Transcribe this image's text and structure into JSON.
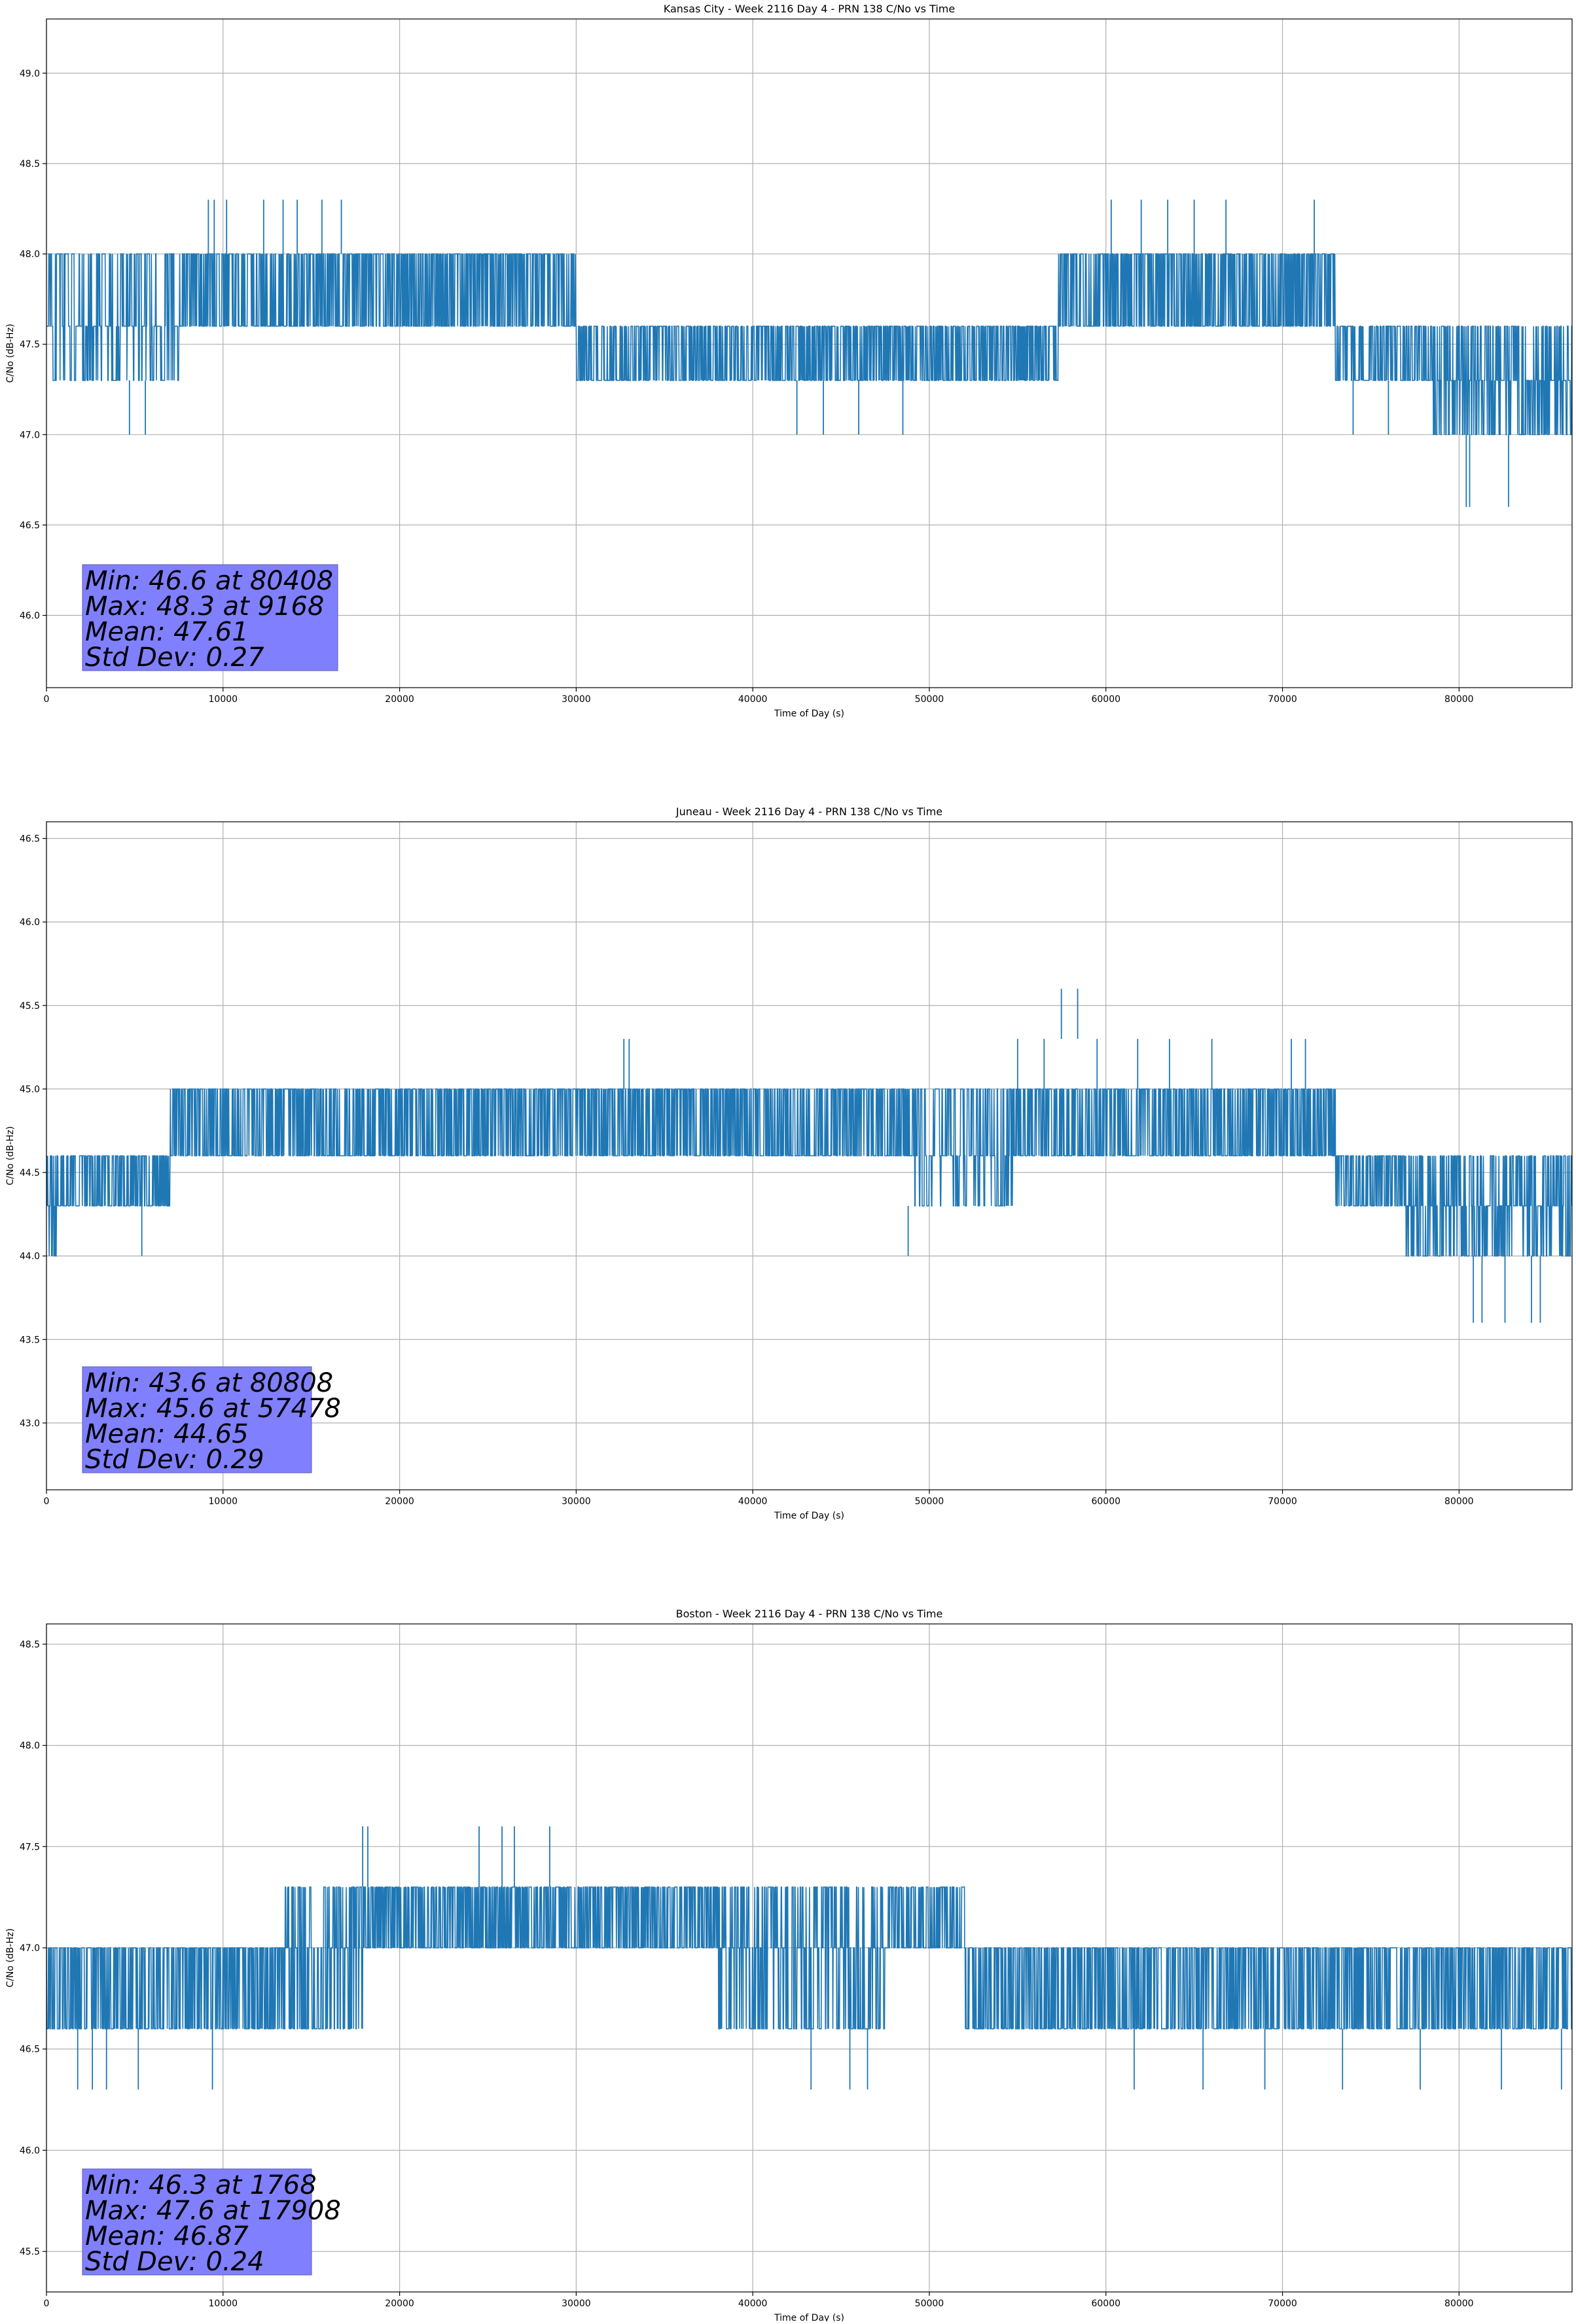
{
  "chart_data": [
    {
      "type": "line",
      "title": "Kansas City - Week 2116 Day 4 - PRN 138 C/No vs Time",
      "xlabel": "Time of Day (s)",
      "ylabel": "C/No (dB-Hz)",
      "xlim": [
        0,
        86400
      ],
      "ylim": [
        45.6,
        49.3
      ],
      "xticks": [
        0,
        10000,
        20000,
        30000,
        40000,
        50000,
        60000,
        70000,
        80000
      ],
      "yticks": [
        46.0,
        46.5,
        47.0,
        47.5,
        48.0,
        48.5,
        49.0
      ],
      "grid": true,
      "series_color": "#1f77b4",
      "segments": [
        {
          "x": [
            0,
            7800
          ],
          "levels": [
            47.3,
            47.6,
            48.0
          ],
          "density": 0.55
        },
        {
          "x": [
            7800,
            30000
          ],
          "levels": [
            47.6,
            48.0
          ],
          "density": 0.9
        },
        {
          "x": [
            30000,
            57300
          ],
          "levels": [
            47.3,
            47.6
          ],
          "density": 0.85
        },
        {
          "x": [
            57300,
            73000
          ],
          "levels": [
            47.6,
            48.0
          ],
          "density": 0.95
        },
        {
          "x": [
            73000,
            78500
          ],
          "levels": [
            47.3,
            47.6
          ],
          "density": 0.75
        },
        {
          "x": [
            78500,
            86400
          ],
          "levels": [
            47.0,
            47.3,
            47.6
          ],
          "density": 0.8
        }
      ],
      "spikes": [
        {
          "x": 4700,
          "low": 47.0,
          "high": 47.3
        },
        {
          "x": 5600,
          "low": 47.0,
          "high": 47.3
        },
        {
          "x": 9168,
          "low": 48.0,
          "high": 48.3
        },
        {
          "x": 9500,
          "low": 48.0,
          "high": 48.3
        },
        {
          "x": 10200,
          "low": 48.0,
          "high": 48.3
        },
        {
          "x": 12300,
          "low": 48.0,
          "high": 48.3
        },
        {
          "x": 13400,
          "low": 48.0,
          "high": 48.3
        },
        {
          "x": 14200,
          "low": 48.0,
          "high": 48.3
        },
        {
          "x": 15600,
          "low": 48.0,
          "high": 48.3
        },
        {
          "x": 16700,
          "low": 48.0,
          "high": 48.3
        },
        {
          "x": 42500,
          "low": 47.0,
          "high": 47.3
        },
        {
          "x": 44000,
          "low": 47.0,
          "high": 47.3
        },
        {
          "x": 46000,
          "low": 47.0,
          "high": 47.3
        },
        {
          "x": 48500,
          "low": 47.0,
          "high": 47.3
        },
        {
          "x": 60300,
          "low": 48.0,
          "high": 48.3
        },
        {
          "x": 62000,
          "low": 48.0,
          "high": 48.3
        },
        {
          "x": 63500,
          "low": 48.0,
          "high": 48.3
        },
        {
          "x": 65000,
          "low": 48.0,
          "high": 48.3
        },
        {
          "x": 66800,
          "low": 48.0,
          "high": 48.3
        },
        {
          "x": 71800,
          "low": 48.0,
          "high": 48.3
        },
        {
          "x": 74000,
          "low": 47.0,
          "high": 47.3
        },
        {
          "x": 76000,
          "low": 47.0,
          "high": 47.3
        },
        {
          "x": 80408,
          "low": 46.6,
          "high": 47.0
        },
        {
          "x": 80600,
          "low": 46.6,
          "high": 47.0
        },
        {
          "x": 82800,
          "low": 46.6,
          "high": 47.0
        }
      ],
      "stats": {
        "min": "Min: 46.6 at 80408",
        "max": "Max: 48.3 at 9168",
        "mean": "Mean: 47.61",
        "std": "Std Dev: 0.27"
      }
    },
    {
      "type": "line",
      "title": "Juneau - Week 2116 Day 4 - PRN 138 C/No vs Time",
      "xlabel": "Time of Day (s)",
      "ylabel": "C/No (dB-Hz)",
      "xlim": [
        0,
        86400
      ],
      "ylim": [
        42.6,
        46.6
      ],
      "xticks": [
        0,
        10000,
        20000,
        30000,
        40000,
        50000,
        60000,
        70000,
        80000
      ],
      "yticks": [
        43.0,
        43.5,
        44.0,
        44.5,
        45.0,
        45.5,
        46.0,
        46.5
      ],
      "grid": true,
      "series_color": "#1f77b4",
      "segments": [
        {
          "x": [
            0,
            600
          ],
          "levels": [
            44.0,
            44.3,
            44.6
          ],
          "density": 0.7
        },
        {
          "x": [
            600,
            7000
          ],
          "levels": [
            44.3,
            44.6
          ],
          "density": 0.8
        },
        {
          "x": [
            7000,
            49000
          ],
          "levels": [
            44.6,
            45.0
          ],
          "density": 0.9
        },
        {
          "x": [
            49000,
            54800
          ],
          "levels": [
            44.3,
            44.6,
            45.0
          ],
          "density": 0.6
        },
        {
          "x": [
            54800,
            73000
          ],
          "levels": [
            44.6,
            45.0
          ],
          "density": 0.9
        },
        {
          "x": [
            73000,
            77000
          ],
          "levels": [
            44.3,
            44.6
          ],
          "density": 0.8
        },
        {
          "x": [
            77000,
            86400
          ],
          "levels": [
            44.0,
            44.3,
            44.6
          ],
          "density": 0.85
        }
      ],
      "spikes": [
        {
          "x": 5400,
          "low": 44.0,
          "high": 44.3
        },
        {
          "x": 32700,
          "low": 45.0,
          "high": 45.3
        },
        {
          "x": 33000,
          "low": 45.0,
          "high": 45.3
        },
        {
          "x": 48800,
          "low": 44.0,
          "high": 44.3
        },
        {
          "x": 55000,
          "low": 45.0,
          "high": 45.3
        },
        {
          "x": 56500,
          "low": 45.0,
          "high": 45.3
        },
        {
          "x": 57478,
          "low": 45.3,
          "high": 45.6
        },
        {
          "x": 58400,
          "low": 45.3,
          "high": 45.6
        },
        {
          "x": 59500,
          "low": 45.0,
          "high": 45.3
        },
        {
          "x": 61800,
          "low": 45.0,
          "high": 45.3
        },
        {
          "x": 63600,
          "low": 45.0,
          "high": 45.3
        },
        {
          "x": 66000,
          "low": 45.0,
          "high": 45.3
        },
        {
          "x": 70500,
          "low": 45.0,
          "high": 45.3
        },
        {
          "x": 71300,
          "low": 45.0,
          "high": 45.3
        },
        {
          "x": 80808,
          "low": 43.6,
          "high": 44.0
        },
        {
          "x": 81300,
          "low": 43.6,
          "high": 44.0
        },
        {
          "x": 82600,
          "low": 43.6,
          "high": 44.0
        },
        {
          "x": 84100,
          "low": 43.6,
          "high": 44.0
        },
        {
          "x": 84600,
          "low": 43.6,
          "high": 44.0
        }
      ],
      "stats": {
        "min": "Min: 43.6 at 80808",
        "max": "Max: 45.6 at 57478",
        "mean": "Mean: 44.65",
        "std": "Std Dev: 0.29"
      }
    },
    {
      "type": "line",
      "title": "Boston - Week 2116 Day 4 - PRN 138 C/No vs Time",
      "xlabel": "Time of Day (s)",
      "ylabel": "C/No (dB-Hz)",
      "xlim": [
        0,
        86400
      ],
      "ylim": [
        45.3,
        48.6
      ],
      "xticks": [
        0,
        10000,
        20000,
        30000,
        40000,
        50000,
        60000,
        70000,
        80000
      ],
      "yticks": [
        45.5,
        46.0,
        46.5,
        47.0,
        47.5,
        48.0,
        48.5
      ],
      "grid": true,
      "series_color": "#1f77b4",
      "segments": [
        {
          "x": [
            0,
            13500
          ],
          "levels": [
            46.6,
            47.0
          ],
          "density": 0.9
        },
        {
          "x": [
            13500,
            18000
          ],
          "levels": [
            46.6,
            47.0,
            47.3
          ],
          "density": 0.75
        },
        {
          "x": [
            18000,
            38000
          ],
          "levels": [
            47.0,
            47.3
          ],
          "density": 0.9
        },
        {
          "x": [
            38000,
            47500
          ],
          "levels": [
            46.6,
            47.0,
            47.3
          ],
          "density": 0.7
        },
        {
          "x": [
            47500,
            52000
          ],
          "levels": [
            47.0,
            47.3
          ],
          "density": 0.8
        },
        {
          "x": [
            52000,
            86400
          ],
          "levels": [
            46.6,
            47.0
          ],
          "density": 0.85
        }
      ],
      "spikes": [
        {
          "x": 1768,
          "low": 46.3,
          "high": 46.6
        },
        {
          "x": 2600,
          "low": 46.3,
          "high": 46.6
        },
        {
          "x": 3400,
          "low": 46.3,
          "high": 46.6
        },
        {
          "x": 5200,
          "low": 46.3,
          "high": 46.6
        },
        {
          "x": 9400,
          "low": 46.3,
          "high": 46.6
        },
        {
          "x": 17908,
          "low": 47.3,
          "high": 47.6
        },
        {
          "x": 18200,
          "low": 47.3,
          "high": 47.6
        },
        {
          "x": 24500,
          "low": 47.3,
          "high": 47.6
        },
        {
          "x": 25800,
          "low": 47.3,
          "high": 47.6
        },
        {
          "x": 26500,
          "low": 47.3,
          "high": 47.6
        },
        {
          "x": 28500,
          "low": 47.3,
          "high": 47.6
        },
        {
          "x": 43300,
          "low": 46.3,
          "high": 46.6
        },
        {
          "x": 45500,
          "low": 46.3,
          "high": 46.6
        },
        {
          "x": 46500,
          "low": 46.3,
          "high": 46.6
        },
        {
          "x": 61600,
          "low": 46.3,
          "high": 46.6
        },
        {
          "x": 65500,
          "low": 46.3,
          "high": 46.6
        },
        {
          "x": 69000,
          "low": 46.3,
          "high": 46.6
        },
        {
          "x": 73400,
          "low": 46.3,
          "high": 46.6
        },
        {
          "x": 77800,
          "low": 46.3,
          "high": 46.6
        },
        {
          "x": 82400,
          "low": 46.3,
          "high": 46.6
        },
        {
          "x": 85800,
          "low": 46.3,
          "high": 46.6
        }
      ],
      "stats": {
        "min": "Min: 46.3 at 1768",
        "max": "Max: 47.6 at 17908",
        "mean": "Mean: 46.87",
        "std": "Std Dev: 0.24"
      }
    }
  ]
}
